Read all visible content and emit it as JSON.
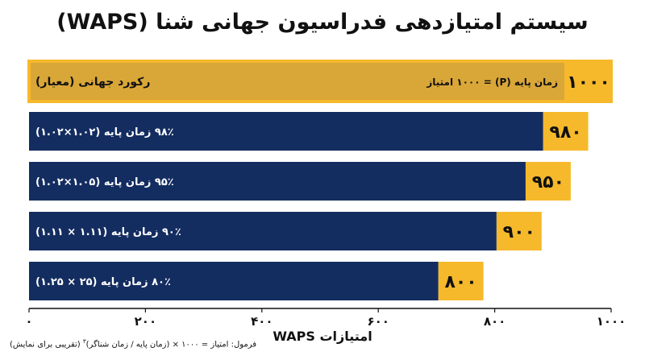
{
  "title": "سیستم امتیازدهی فدراسیون جهانی شنا (WAPS)",
  "formula": {
    "prefix": "فرمول: امتیاز = ۱۰۰۰ × (زمان پایه / زمان شناگر)",
    "exponent": "۳",
    "suffix": " (تقریبی برای نمایش)"
  },
  "chart_data": {
    "type": "bar",
    "orientation": "horizontal",
    "title": "سیستم امتیازدهی فدراسیون جهانی شنا (WAPS)",
    "xlabel": "امتیازات WAPS",
    "xlim": [
      0,
      1000
    ],
    "xticks": [
      0,
      200,
      400,
      600,
      800,
      1000
    ],
    "xtick_labels": [
      "۰",
      "۲۰۰",
      "۴۰۰",
      "۶۰۰",
      "۸۰۰",
      "۱۰۰۰"
    ],
    "grid": false,
    "bars": [
      {
        "label": "رکورد جهانی (معیار)",
        "note": "زمان پایه (P) = ۱۰۰۰ امتیاز",
        "value": 1000,
        "value_label": "۱۰۰۰",
        "reference": true,
        "fill_color": "#D9A638",
        "value_color": "#F6B92C"
      },
      {
        "label": "۹۸٪ زمان پایه (۱.۰۲×۱.۰۲)",
        "value": 980,
        "value_label": "۹۸۰",
        "fill_color": "#142D60",
        "value_color": "#F6B92C"
      },
      {
        "label": "۹۵٪ زمان پایه (۱.۰۵×۱.۰۲)",
        "value": 950,
        "value_label": "۹۵۰",
        "fill_color": "#142D60",
        "value_color": "#F6B92C"
      },
      {
        "label": "۹۰٪ زمان پایه (۱.۱۱ × ۱.۱۱)",
        "value": 900,
        "value_label": "۹۰۰",
        "fill_color": "#142D60",
        "value_color": "#F6B92C"
      },
      {
        "label": "۸۰٪ زمان پایه (۲۵ × ۱.۲۵)",
        "value": 800,
        "value_label": "۸۰۰",
        "fill_color": "#142D60",
        "value_color": "#F6B92C"
      }
    ]
  }
}
